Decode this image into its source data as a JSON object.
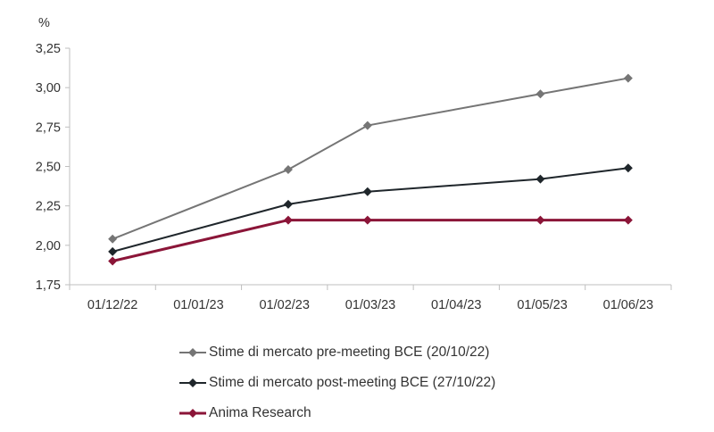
{
  "chart_data": {
    "type": "line",
    "ylabel": "%",
    "ylim": [
      1.75,
      3.25
    ],
    "y_ticks": [
      "3,25",
      "3,00",
      "2,75",
      "2,50",
      "2,25",
      "2,00",
      "1,75"
    ],
    "y_tick_values": [
      3.25,
      3.0,
      2.75,
      2.5,
      2.25,
      2.0,
      1.75
    ],
    "x_ticks": [
      "01/12/22",
      "01/01/23",
      "01/02/23",
      "01/03/23",
      "01/04/23",
      "01/05/23",
      "01/06/23"
    ],
    "x_tick_dates": [
      "2022-12-01",
      "2023-01-01",
      "2023-02-01",
      "2023-03-01",
      "2023-04-01",
      "2023-05-01",
      "2023-06-01"
    ],
    "series": [
      {
        "name": "Stime di mercato pre-meeting BCE (20/10/22)",
        "color": "#757575",
        "marker": "diamond",
        "x": [
          "2022-12-01",
          "2023-02-01",
          "2023-03-01",
          "2023-05-01",
          "2023-06-01"
        ],
        "values": [
          2.04,
          2.48,
          2.76,
          2.96,
          3.06
        ]
      },
      {
        "name": "Stime di mercato post-meeting BCE (27/10/22)",
        "color": "#1f262b",
        "marker": "diamond",
        "x": [
          "2022-12-01",
          "2023-02-01",
          "2023-03-01",
          "2023-05-01",
          "2023-06-01"
        ],
        "values": [
          1.96,
          2.26,
          2.34,
          2.42,
          2.49
        ]
      },
      {
        "name": "Anima Research",
        "color": "#8b1538",
        "marker": "diamond",
        "x": [
          "2022-12-01",
          "2023-02-01",
          "2023-03-01",
          "2023-05-01",
          "2023-06-01"
        ],
        "values": [
          1.9,
          2.16,
          2.16,
          2.16,
          2.16
        ]
      }
    ],
    "grid": false,
    "legend_position": "bottom"
  }
}
